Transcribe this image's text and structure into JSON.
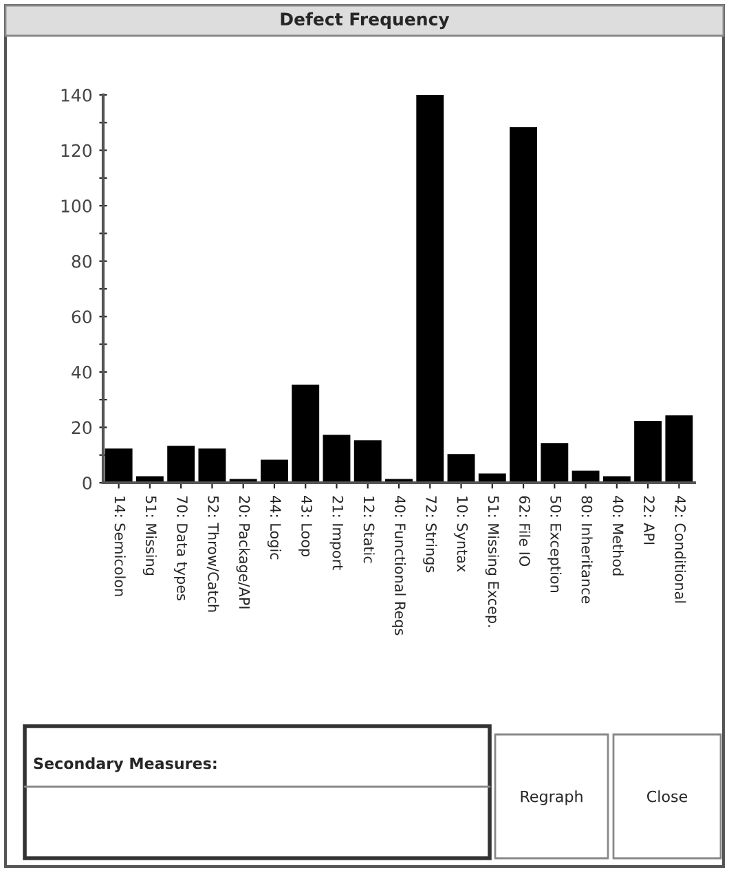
{
  "chart_data": {
    "type": "bar",
    "title": "Defect Frequency",
    "categories": [
      "14: Semicolon",
      "51: Missing",
      "70: Data types",
      "52: Throw/Catch",
      "20: Package/API",
      "44: Logic",
      "43: Loop",
      "21: Import",
      "12: Static",
      "40: Functional Reqs",
      "72: Strings",
      "10: Syntax",
      "51: Missing Excep.",
      "62: File IO",
      "50: Exception",
      "80: Inheritance",
      "40: Method",
      "22: API",
      "42: Conditional"
    ],
    "values": [
      12,
      2,
      13,
      12,
      1,
      8,
      35,
      17,
      15,
      1,
      140,
      10,
      3,
      128,
      14,
      4,
      2,
      22,
      24
    ],
    "color": "#000000",
    "ylim": [
      0,
      140
    ],
    "yticks": [
      0,
      {
        "value": 10,
        "label": null
      },
      20,
      {
        "value": 30,
        "label": null
      },
      40,
      {
        "value": 50,
        "label": null
      },
      60,
      {
        "value": 70,
        "label": null
      },
      80,
      {
        "value": 90,
        "label": null
      },
      100,
      {
        "value": 110,
        "label": null
      },
      120,
      {
        "value": 130,
        "label": null
      },
      140
    ],
    "grid": false,
    "legend": false,
    "annotations": [
      "Secondary Measures:",
      "Regraph",
      "Close"
    ]
  }
}
